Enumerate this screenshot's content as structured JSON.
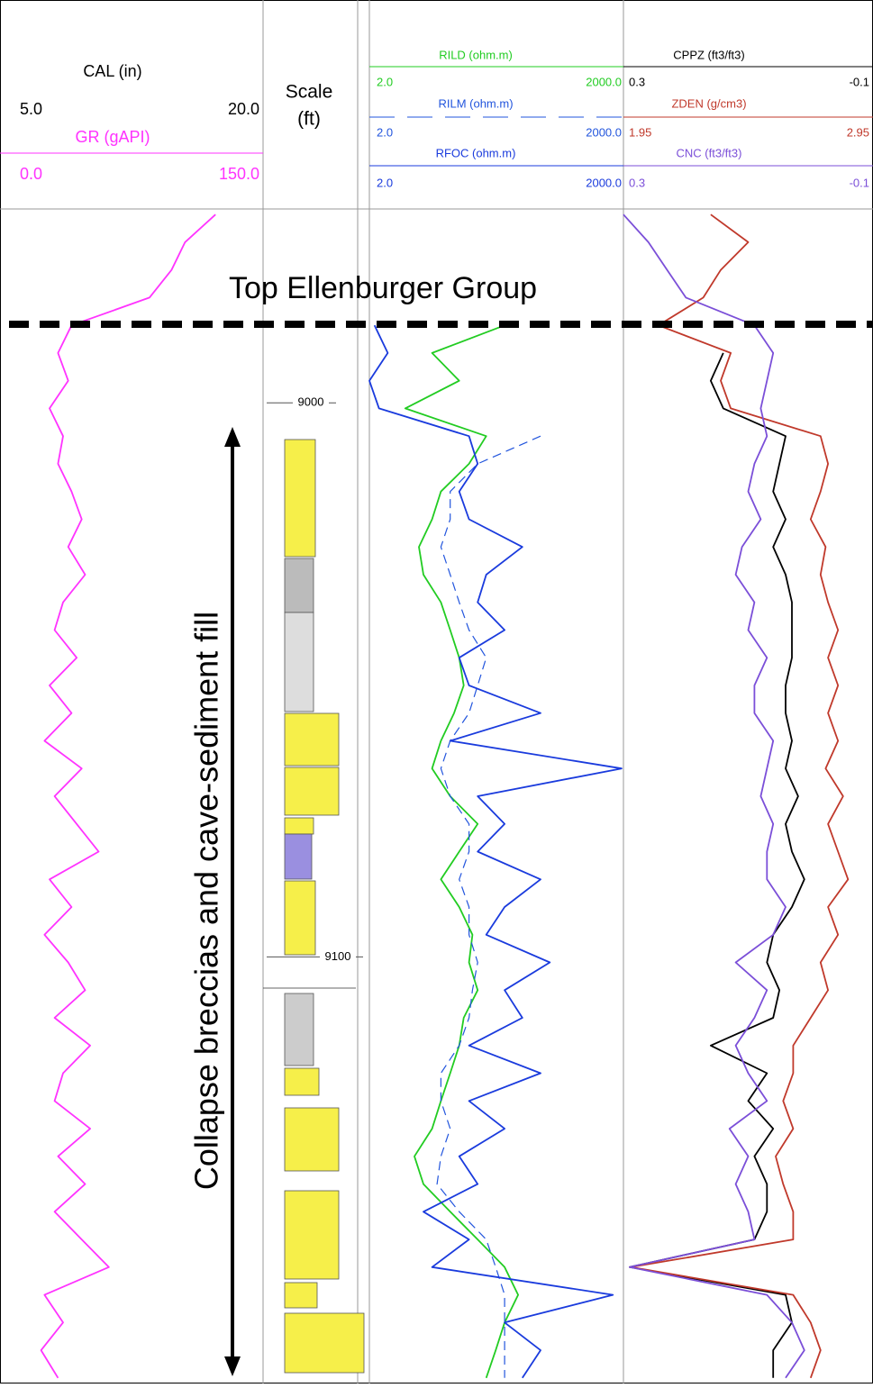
{
  "chart_data": {
    "type": "well_log",
    "depth_label": [
      "Scale",
      "(ft)"
    ],
    "ylim": [
      8965,
      9177
    ],
    "yticks": [
      9000,
      9100
    ],
    "depths": [
      8966,
      8971,
      8976,
      8981,
      8986,
      8991,
      8996,
      9001,
      9006,
      9011,
      9016,
      9021,
      9026,
      9031,
      9036,
      9041,
      9046,
      9051,
      9056,
      9061,
      9066,
      9071,
      9076,
      9081,
      9086,
      9091,
      9096,
      9101,
      9106,
      9111,
      9116,
      9121,
      9126,
      9131,
      9136,
      9141,
      9146,
      9151,
      9156,
      9161,
      9166,
      9171,
      9176
    ],
    "annotations": [
      "Top Ellenburger Group",
      "Collapse breccias and cave-sediment fill"
    ],
    "tracks": [
      {
        "scale": "linear",
        "curves": [
          {
            "name": "CAL (in)",
            "color": "#000000",
            "range": [
              {
                "value": 5,
                "label": "5.0"
              },
              {
                "value": 20,
                "label": "20.0"
              }
            ]
          },
          {
            "name": "GR (gAPI)",
            "color": "#ff33ff",
            "range": [
              {
                "value": 0,
                "label": "0.0"
              },
              {
                "value": 150,
                "label": "150.0"
              }
            ],
            "values": [
              123,
              105,
              97,
              84,
              38,
              30,
              36,
              25,
              33,
              30,
              38,
              44,
              36,
              46,
              33,
              28,
              41,
              25,
              38,
              22,
              44,
              28,
              41,
              54,
              25,
              38,
              22,
              36,
              46,
              28,
              49,
              33,
              28,
              49,
              30,
              46,
              28,
              44,
              60,
              22,
              33,
              20,
              30
            ]
          }
        ]
      },
      {
        "scale": "log",
        "curves": [
          {
            "name": "RILD (ohm.m)",
            "color": "#22cc22",
            "range": [
              {
                "value": 2,
                "label": "2.0"
              },
              {
                "value": 2000,
                "label": "2000.0"
              }
            ],
            "values": [
              null,
              null,
              null,
              null,
              79,
              11,
              23,
              5.3,
              48,
              30,
              14,
              11,
              7.7,
              8.7,
              14,
              18,
              23,
              26,
              20,
              14,
              11,
              18,
              38,
              23,
              14,
              23,
              33,
              30,
              38,
              26,
              23,
              18,
              14,
              11,
              6.8,
              8.7,
              18,
              38,
              79,
              114,
              79,
              62,
              48
            ]
          },
          {
            "name": "RILM (ohm.m)",
            "color": "#2255dd",
            "dashed": true,
            "range": [
              {
                "value": 2,
                "label": "2.0"
              },
              {
                "value": 2000,
                "label": "2000.0"
              }
            ],
            "values": [
              null,
              null,
              null,
              null,
              null,
              null,
              null,
              null,
              210,
              38,
              18,
              18,
              14,
              18,
              23,
              30,
              48,
              38,
              30,
              18,
              14,
              18,
              30,
              30,
              23,
              30,
              30,
              38,
              33,
              30,
              23,
              14,
              14,
              18,
              14,
              12.6,
              23,
              48,
              62,
              79,
              79,
              79,
              79
            ]
          },
          {
            "name": "RFOC (ohm.m)",
            "color": "#1a3bdd",
            "range": [
              {
                "value": 2,
                "label": "2.0"
              },
              {
                "value": 2000,
                "label": "2000.0"
              }
            ],
            "values": [
              null,
              null,
              null,
              null,
              2.3,
              3.3,
              2.0,
              2.6,
              30,
              38,
              23,
              30,
              128,
              48,
              38,
              79,
              23,
              30,
              210,
              18,
              1900,
              38,
              79,
              38,
              210,
              79,
              48,
              270,
              79,
              128,
              30,
              210,
              30,
              79,
              23,
              38,
              8.7,
              30,
              11,
              1500,
              79,
              210,
              128
            ]
          }
        ]
      },
      {
        "scale": "linear",
        "curves": [
          {
            "name": "CPPZ (ft3/ft3)",
            "color": "#000000",
            "range": [
              0.3,
              -0.1
            ],
            "values": [
              null,
              null,
              null,
              null,
              null,
              0.14,
              0.16,
              0.14,
              0.04,
              0.05,
              0.06,
              0.04,
              0.06,
              0.04,
              0.03,
              0.03,
              0.03,
              0.04,
              0.04,
              0.03,
              0.04,
              0.02,
              0.04,
              0.03,
              0.01,
              0.03,
              0.06,
              0.07,
              0.05,
              0.06,
              0.16,
              0.07,
              0.1,
              0.06,
              0.09,
              0.07,
              0.07,
              0.09,
              0.29,
              0.04,
              0.03,
              0.06,
              0.06
            ]
          },
          {
            "name": "ZDEN (g/cm3)",
            "color": "#c0392b",
            "range": [
              1.95,
              2.95
            ],
            "values": [
              2.3,
              2.45,
              2.34,
              2.27,
              2.09,
              2.38,
              2.34,
              2.38,
              2.74,
              2.77,
              2.74,
              2.7,
              2.76,
              2.74,
              2.77,
              2.81,
              2.77,
              2.81,
              2.77,
              2.81,
              2.76,
              2.83,
              2.77,
              2.81,
              2.85,
              2.77,
              2.81,
              2.74,
              2.77,
              2.7,
              2.63,
              2.63,
              2.59,
              2.63,
              2.56,
              2.59,
              2.63,
              2.63,
              1.98,
              2.63,
              2.7,
              2.74,
              2.7
            ]
          },
          {
            "name": "CNC (ft3/ft3)",
            "color": "#7b4fd8",
            "range": [
              0.3,
              -0.1
            ],
            "values": [
              0.3,
              0.26,
              0.23,
              0.2,
              0.09,
              0.06,
              0.07,
              0.08,
              0.07,
              0.09,
              0.1,
              0.08,
              0.11,
              0.12,
              0.09,
              0.1,
              0.07,
              0.09,
              0.09,
              0.06,
              0.07,
              0.08,
              0.06,
              0.07,
              0.07,
              0.04,
              0.06,
              0.12,
              0.07,
              0.09,
              0.12,
              0.1,
              0.07,
              0.13,
              0.1,
              0.12,
              0.1,
              0.09,
              0.29,
              0.07,
              0.03,
              0.01,
              0.04
            ]
          }
        ]
      }
    ]
  }
}
